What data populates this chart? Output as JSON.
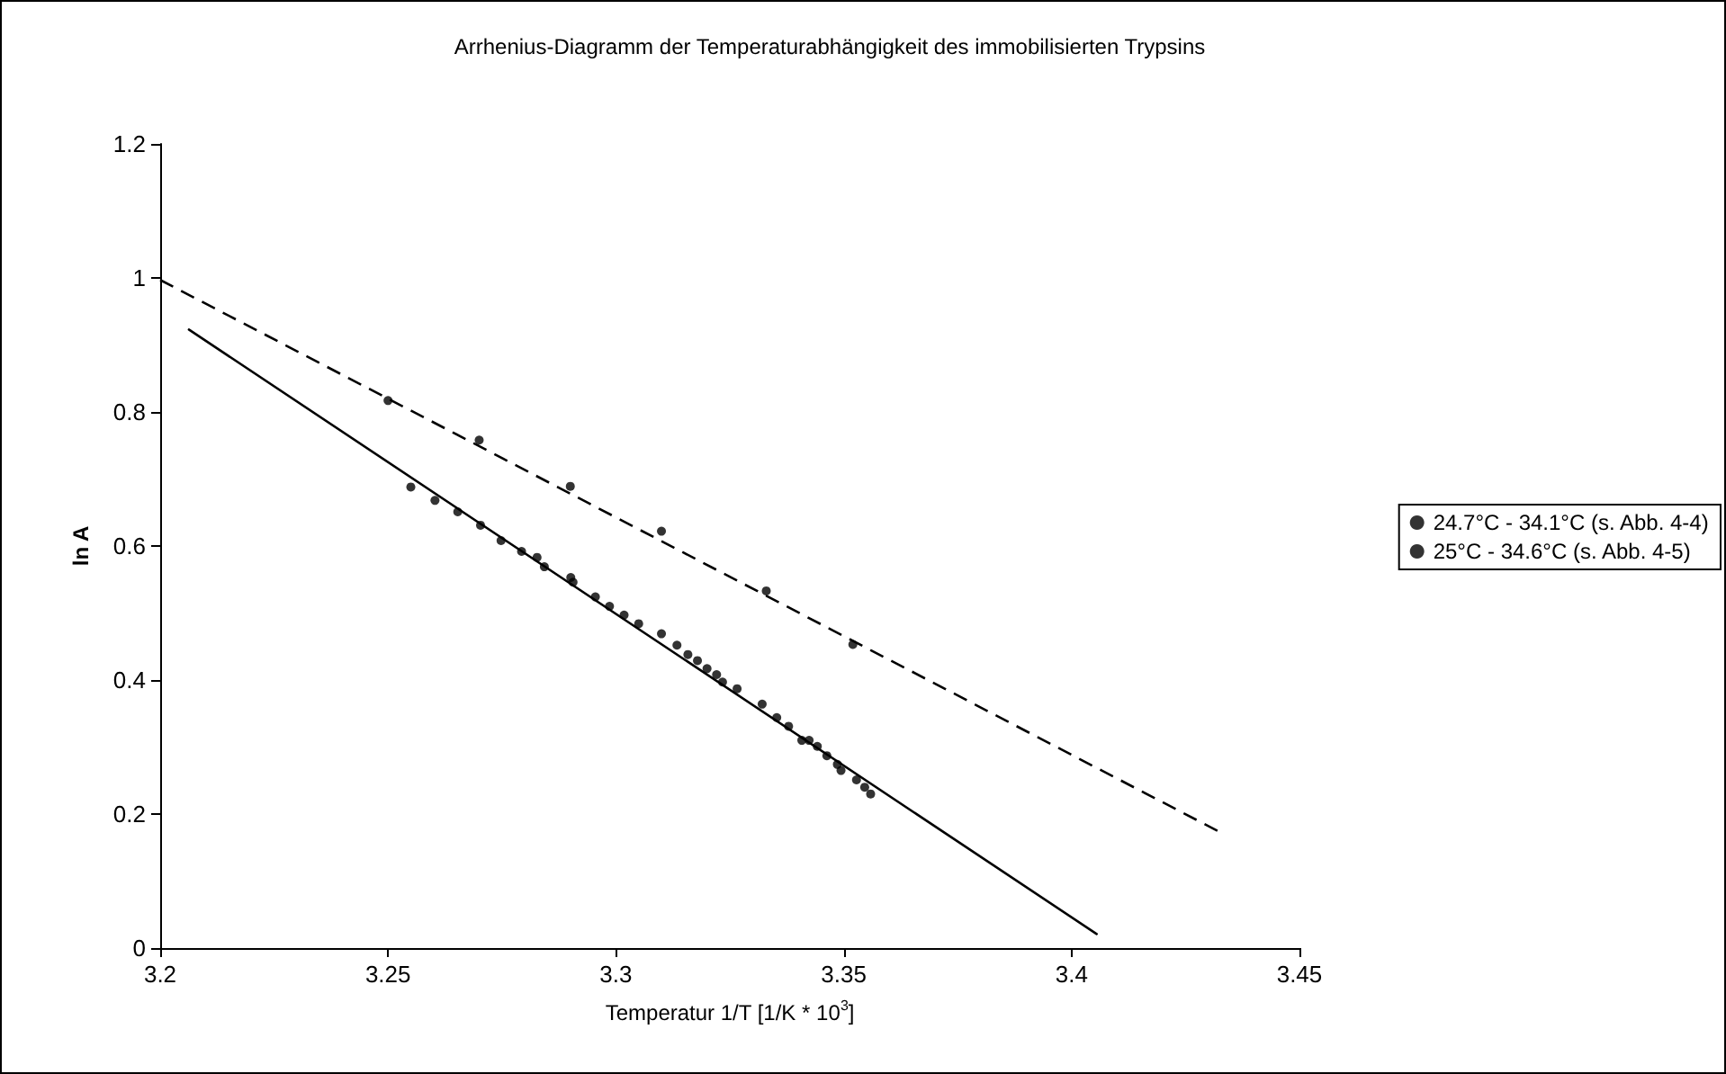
{
  "chart_data": {
    "type": "scatter",
    "title": "Arrhenius-Diagramm der Temperaturabhängigkeit des immobilisierten Trypsins",
    "xlabel": "Temperatur 1/T [1/K * 10$^{3}$]",
    "ylabel": "ln A",
    "xlim": [
      3.2,
      3.45
    ],
    "xticks": [
      3.2,
      3.25,
      3.3,
      3.35,
      3.4,
      3.45
    ],
    "ylim": [
      0,
      1.2
    ],
    "yticks": [
      0,
      0.2,
      0.4,
      0.6,
      0.8,
      1,
      1.2
    ],
    "grid": false,
    "legend": "right",
    "marker": "circle",
    "series": [
      {
        "name": "24.7°C - 34.1°C (s. Abb. 4-4)",
        "color": "#000000",
        "x": [
          3.255,
          3.2603,
          3.2653,
          3.2703,
          3.2748,
          3.2793,
          3.2827,
          3.2843,
          3.2901,
          3.2906,
          3.2955,
          3.2986,
          3.3018,
          3.305,
          3.31,
          3.3134,
          3.3158,
          3.3179,
          3.32,
          3.3221,
          3.3234,
          3.3266,
          3.3321,
          3.3353,
          3.3379,
          3.3408,
          3.3424,
          3.3442,
          3.3463,
          3.3486,
          3.3494,
          3.3528,
          3.3546,
          3.3559
        ],
        "values": [
          0.688,
          0.668,
          0.651,
          0.631,
          0.608,
          0.592,
          0.583,
          0.569,
          0.553,
          0.546,
          0.524,
          0.51,
          0.497,
          0.484,
          0.469,
          0.452,
          0.438,
          0.429,
          0.417,
          0.408,
          0.397,
          0.387,
          0.364,
          0.344,
          0.331,
          0.31,
          0.31,
          0.301,
          0.287,
          0.274,
          0.265,
          0.251,
          0.24,
          0.23
        ]
      },
      {
        "name": "25°C - 34.6°C (s. Abb. 4-5)",
        "color": "#000000",
        "x": [
          3.25,
          3.27,
          3.29,
          3.31,
          3.333,
          3.352
        ],
        "values": [
          0.817,
          0.758,
          0.689,
          0.622,
          0.533,
          0.453
        ]
      },
      {
        "type": "line",
        "color": "#000000",
        "marker": "none",
        "line_style": "solid",
        "x": [
          3.2063,
          3.4055
        ],
        "values": [
          0.923,
          0.021
        ]
      },
      {
        "type": "line",
        "color": "#000000",
        "marker": "none",
        "line_style": "dashed",
        "x": [
          3.2,
          3.432
        ],
        "values": [
          0.997,
          0.175
        ]
      }
    ]
  }
}
